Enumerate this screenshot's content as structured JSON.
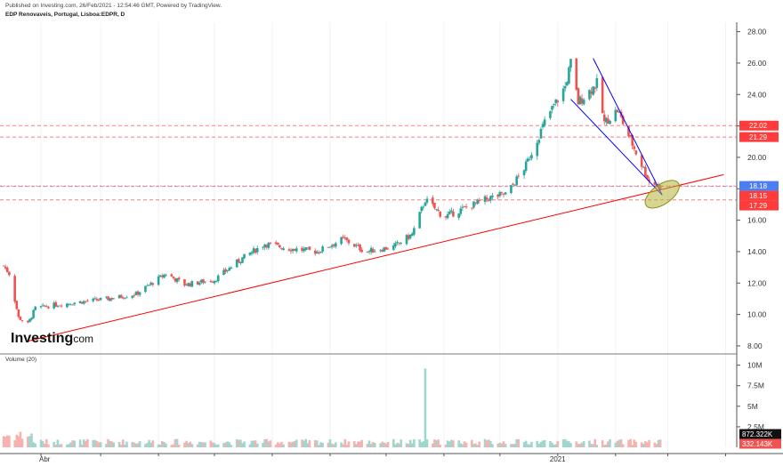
{
  "header": {
    "published": "Published on Investing.com, 26/Feb/2021 - 12:54:46 GMT, Powered by TradingView.",
    "symbol": "EDP Renovaveis, Portugal, Lisboa:EDPR, D"
  },
  "logo": {
    "main": "Investing",
    "suffix": ".com"
  },
  "colors": {
    "up": "#26a69a",
    "down": "#ef5350",
    "trendline": "#ff0000",
    "channel": "#0000ff",
    "ellipse": "#b5b53a",
    "level_red": "#ff3b3b",
    "level_blue": "#4c7ef2",
    "vol_up": "#9fd7cf",
    "vol_down": "#f7b2b0",
    "vol_last": "#111111"
  },
  "chart_data": [
    {
      "type": "candlestick",
      "title": "EDP Renovaveis, Portugal, Lisboa:EDPR, D",
      "y_ticks": [
        "28.00",
        "26.00",
        "24.00",
        "22.00",
        "20.00",
        "18.00",
        "16.00",
        "14.00",
        "12.00",
        "10.00",
        "8.00"
      ],
      "ylim": [
        7.6,
        28.6
      ],
      "x_tick_labels": [
        "Abr",
        "2021"
      ],
      "x_tick_dates": [
        "2020-04-01",
        "2021-01-01"
      ],
      "approximate_path": [
        {
          "date": "2020-03-10",
          "close": 13.1
        },
        {
          "date": "2020-03-13",
          "close": 12.6
        },
        {
          "date": "2020-03-18",
          "close": 9.8
        },
        {
          "date": "2020-03-23",
          "close": 9.4
        },
        {
          "date": "2020-03-27",
          "close": 10.4
        },
        {
          "date": "2020-04-06",
          "close": 10.6
        },
        {
          "date": "2020-04-20",
          "close": 10.8
        },
        {
          "date": "2020-05-05",
          "close": 11.0
        },
        {
          "date": "2020-05-20",
          "close": 11.3
        },
        {
          "date": "2020-06-05",
          "close": 12.6
        },
        {
          "date": "2020-06-15",
          "close": 11.9
        },
        {
          "date": "2020-07-01",
          "close": 12.2
        },
        {
          "date": "2020-07-15",
          "close": 13.5
        },
        {
          "date": "2020-07-28",
          "close": 14.5
        },
        {
          "date": "2020-08-10",
          "close": 14.2
        },
        {
          "date": "2020-08-25",
          "close": 14.0
        },
        {
          "date": "2020-09-08",
          "close": 14.8
        },
        {
          "date": "2020-09-20",
          "close": 14.0
        },
        {
          "date": "2020-10-05",
          "close": 14.3
        },
        {
          "date": "2020-10-15",
          "close": 15.1
        },
        {
          "date": "2020-10-22",
          "close": 17.3
        },
        {
          "date": "2020-11-01",
          "close": 16.2
        },
        {
          "date": "2020-11-15",
          "close": 16.9
        },
        {
          "date": "2020-11-25",
          "close": 17.4
        },
        {
          "date": "2020-12-05",
          "close": 17.7
        },
        {
          "date": "2020-12-15",
          "close": 19.5
        },
        {
          "date": "2020-12-26",
          "close": 22.5
        },
        {
          "date": "2021-01-05",
          "close": 24.5
        },
        {
          "date": "2021-01-08",
          "close": 26.0
        },
        {
          "date": "2021-01-12",
          "close": 23.5
        },
        {
          "date": "2021-01-22",
          "close": 24.7
        },
        {
          "date": "2021-01-26",
          "close": 22.2
        },
        {
          "date": "2021-02-02",
          "close": 23.0
        },
        {
          "date": "2021-02-12",
          "close": 20.3
        },
        {
          "date": "2021-02-19",
          "close": 18.5
        },
        {
          "date": "2021-02-25",
          "close": 18.15
        }
      ],
      "levels": [
        {
          "value": 22.02,
          "label": "22.02",
          "color": "#ff3b3b"
        },
        {
          "value": 21.29,
          "label": "21.29",
          "color": "#ff3b3b"
        },
        {
          "value": 18.18,
          "label": "18.18",
          "color": "#4c7ef2"
        },
        {
          "value": 18.15,
          "label": "18.15",
          "color": "#ff3b3b"
        },
        {
          "value": 17.29,
          "label": "17.29",
          "color": "#ff3b3b"
        }
      ],
      "trendline": {
        "from": {
          "date": "2020-03-23",
          "value": 8.3
        },
        "to": {
          "date": "2021-03-31",
          "value": 18.9
        }
      },
      "channel_upper": {
        "from": {
          "date": "2021-01-20",
          "value": 26.3
        },
        "to": {
          "date": "2021-02-26",
          "value": 17.6
        }
      },
      "channel_lower": {
        "from": {
          "date": "2021-01-08",
          "value": 23.7
        },
        "to": {
          "date": "2021-02-26",
          "value": 17.6
        }
      }
    },
    {
      "type": "bar",
      "title": "Volume (20)",
      "y_ticks": [
        "10M",
        "7.5M",
        "5M",
        "2.5M"
      ],
      "ylim": [
        0,
        10500000
      ],
      "last_value_labels": [
        "872.322K",
        "332.143K"
      ],
      "spike": {
        "date": "2020-10-22",
        "value": 9600000
      },
      "typical_value": 600000
    }
  ]
}
